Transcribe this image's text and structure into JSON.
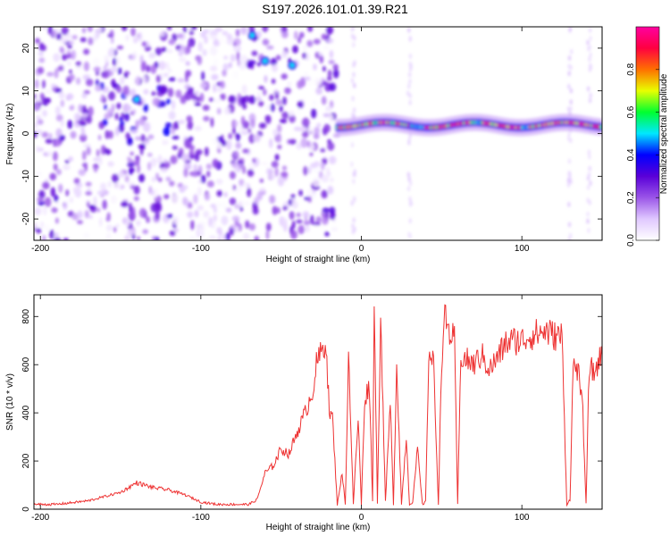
{
  "title": "S197.2026.101.01.39.R21",
  "chart_data": [
    {
      "type": "heatmap",
      "name": "spectrogram",
      "xlabel": "Height of straight line (km)",
      "ylabel": "Frequency (Hz)",
      "xlim": [
        -204,
        150
      ],
      "ylim": [
        -25,
        25
      ],
      "xticks": [
        -200,
        -100,
        0,
        100
      ],
      "yticks": [
        -20,
        -10,
        0,
        10,
        20
      ],
      "colorbar": {
        "label": "Normalized spectral amplitude",
        "range": [
          0,
          1
        ],
        "ticks": [
          0.0,
          0.2,
          0.4,
          0.6,
          0.8
        ],
        "tick_labels": [
          "0.0",
          "0.2",
          "0.4",
          "0.6",
          "0.8"
        ],
        "colormap": [
          "#ffffff",
          "#e0c8ff",
          "#9a55e8",
          "#5a00d8",
          "#0000ff",
          "#00e8ff",
          "#00ff30",
          "#e8ff00",
          "#ff7000",
          "#ff0040",
          "#ff00a0"
        ]
      },
      "regions": [
        {
          "x_range": [
            -204,
            -15
          ],
          "freq_range": [
            -25,
            25
          ],
          "amplitude": "low scattered, 0.05-0.3",
          "hotspots": [
            {
              "x": -140,
              "f": 8
            },
            {
              "x": -68,
              "f": 23
            },
            {
              "x": -60,
              "f": 17
            },
            {
              "x": -43,
              "f": 16
            }
          ]
        },
        {
          "x_range": [
            -15,
            150
          ],
          "freq_range": [
            -1,
            5
          ],
          "amplitude": "carrier line near +2 Hz, 0.4-1.0",
          "peak_segments": [
            [
              -15,
              30
            ],
            [
              40,
              70
            ],
            [
              75,
              100
            ],
            [
              105,
              150
            ]
          ]
        }
      ]
    },
    {
      "type": "line",
      "name": "snr",
      "xlabel": "Height of straight line (km)",
      "ylabel": "SNR (10 * v/v)",
      "xlim": [
        -204,
        150
      ],
      "ylim": [
        0,
        890
      ],
      "xticks": [
        -200,
        -100,
        0,
        100
      ],
      "yticks": [
        0,
        200,
        400,
        600,
        800
      ],
      "color": "#ee3333",
      "x": [
        -204,
        -190,
        -170,
        -150,
        -140,
        -130,
        -120,
        -110,
        -100,
        -90,
        -80,
        -70,
        -65,
        -60,
        -55,
        -50,
        -45,
        -40,
        -35,
        -30,
        -28,
        -25,
        -22,
        -20,
        -18,
        -15,
        -12,
        -10,
        -8,
        -5,
        -2,
        0,
        2,
        5,
        7,
        8,
        10,
        12,
        15,
        18,
        20,
        22,
        25,
        28,
        30,
        32,
        35,
        38,
        40,
        42,
        45,
        48,
        50,
        52,
        55,
        58,
        60,
        62,
        65,
        70,
        75,
        80,
        85,
        90,
        95,
        100,
        105,
        110,
        115,
        120,
        125,
        128,
        130,
        132,
        135,
        138,
        140,
        142,
        145,
        148,
        150
      ],
      "values": [
        20,
        20,
        35,
        70,
        110,
        90,
        80,
        60,
        30,
        20,
        20,
        20,
        40,
        150,
        180,
        250,
        230,
        320,
        400,
        500,
        600,
        650,
        700,
        400,
        380,
        20,
        150,
        20,
        650,
        20,
        380,
        20,
        450,
        520,
        30,
        880,
        20,
        810,
        30,
        440,
        20,
        610,
        20,
        300,
        20,
        30,
        250,
        20,
        30,
        650,
        600,
        20,
        620,
        790,
        730,
        700,
        20,
        640,
        620,
        600,
        640,
        580,
        630,
        690,
        700,
        700,
        720,
        730,
        740,
        720,
        720,
        20,
        40,
        600,
        580,
        400,
        20,
        600,
        560,
        620,
        640
      ]
    }
  ]
}
